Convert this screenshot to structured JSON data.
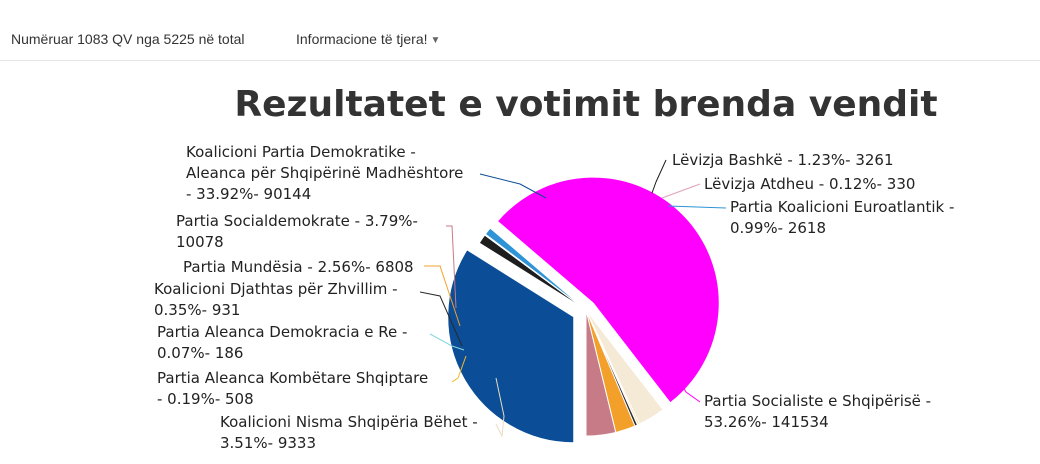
{
  "topbar": {
    "status": "Numëruar 1083 QV nga 5225 në total",
    "menu_label": "Informacione të tjera!",
    "menu_icon": "chevron-down-icon"
  },
  "chart_data": {
    "type": "pie",
    "title": "Rezultatet e votimit brenda vendit",
    "slices": [
      {
        "name": "Koalicioni Partia Demokratike - Aleanca për Shqipërinë Madhështore",
        "percent": 33.92,
        "votes": 90144,
        "color": "#0b4e97",
        "lines": [
          "Koalicioni Partia Demokratike -",
          "Aleanca për Shqipërinë Madhështore",
          "- 33.92%- 90144"
        ]
      },
      {
        "name": "Lëvizja Bashkë",
        "percent": 1.23,
        "votes": 3261,
        "color": "#1e1e1e",
        "lines": [
          "Lëvizja Bashkë - 1.23%- 3261"
        ]
      },
      {
        "name": "Lëvizja Atdheu",
        "percent": 0.12,
        "votes": 330,
        "color": "#e3a1b8",
        "lines": [
          "Lëvizja Atdheu - 0.12%- 330"
        ]
      },
      {
        "name": "Partia Koalicioni Euroatlantik",
        "percent": 0.99,
        "votes": 2618,
        "color": "#2e94d6",
        "lines": [
          "Partia Koalicioni Euroatlantik -",
          "0.99%- 2618"
        ]
      },
      {
        "name": "Partia Socialiste e Shqipërisë",
        "percent": 53.26,
        "votes": 141534,
        "color": "#ff00ff",
        "lines": [
          "Partia Socialiste e Shqipërisë -",
          "53.26%- 141534"
        ]
      },
      {
        "name": "Koalicioni Nisma Shqipëria Bëhet",
        "percent": 3.51,
        "votes": 9333,
        "color": "#f5ead6",
        "lines": [
          "Koalicioni Nisma Shqipëria Bëhet -",
          "3.51%- 9333"
        ]
      },
      {
        "name": "Partia Aleanca Kombëtare Shqiptare",
        "percent": 0.19,
        "votes": 508,
        "color": "#f3b92a",
        "lines": [
          "Partia Aleanca Kombëtare Shqiptare",
          "- 0.19%- 508"
        ]
      },
      {
        "name": "Partia Aleanca Demokracia e Re",
        "percent": 0.07,
        "votes": 186,
        "color": "#86d6dc",
        "lines": [
          "Partia Aleanca Demokracia e Re -",
          "0.07%- 186"
        ]
      },
      {
        "name": "Koalicioni Djathtas për Zhvillim",
        "percent": 0.35,
        "votes": 931,
        "color": "#2a2a2a",
        "lines": [
          "Koalicioni Djathtas për Zhvillim -",
          "0.35%- 931"
        ]
      },
      {
        "name": "Partia Mundësia",
        "percent": 2.56,
        "votes": 6808,
        "color": "#f3a02b",
        "lines": [
          "Partia Mundësia - 2.56%- 6808"
        ]
      },
      {
        "name": "Partia Socialdemokrate",
        "percent": 3.79,
        "votes": 10078,
        "color": "#c77b86",
        "lines": [
          "Partia Socialdemokrate - 3.79%-",
          "10078"
        ]
      }
    ]
  }
}
